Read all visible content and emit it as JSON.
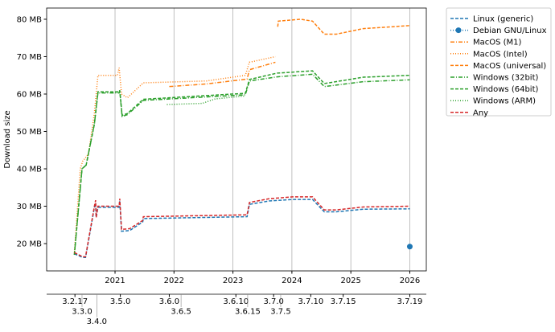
{
  "chart_data": {
    "type": "line",
    "ylabel": "Download size",
    "ylim": [
      12.7,
      83
    ],
    "xlim": [
      2019.84,
      2026.28
    ],
    "yticks": [
      {
        "v": 20,
        "label": "20 MB"
      },
      {
        "v": 30,
        "label": "30 MB"
      },
      {
        "v": 40,
        "label": "40 MB"
      },
      {
        "v": 50,
        "label": "50 MB"
      },
      {
        "v": 60,
        "label": "60 MB"
      },
      {
        "v": 70,
        "label": "70 MB"
      },
      {
        "v": 80,
        "label": "80 MB"
      }
    ],
    "xticks": [
      {
        "v": 2021,
        "label": "2021"
      },
      {
        "v": 2022,
        "label": "2022"
      },
      {
        "v": 2023,
        "label": "2023"
      },
      {
        "v": 2024,
        "label": "2024"
      },
      {
        "v": 2025,
        "label": "2025"
      },
      {
        "v": 2026,
        "label": "2026"
      }
    ],
    "grid": "vertical",
    "legend": "outside-top-right",
    "version_ticks": [
      {
        "v": 2020.32,
        "label": "3.2.17"
      },
      {
        "v": 2020.44,
        "label": "3.3.0"
      },
      {
        "v": 2020.69,
        "label": "3.4.0"
      },
      {
        "v": 2021.09,
        "label": "3.5.0"
      },
      {
        "v": 2021.92,
        "label": "3.6.0"
      },
      {
        "v": 2022.12,
        "label": "3.6.5"
      },
      {
        "v": 2023.05,
        "label": "3.6.10"
      },
      {
        "v": 2023.25,
        "label": "3.6.15"
      },
      {
        "v": 2023.69,
        "label": "3.7.0"
      },
      {
        "v": 2023.81,
        "label": "3.7.5"
      },
      {
        "v": 2024.32,
        "label": "3.7.10"
      },
      {
        "v": 2024.87,
        "label": "3.7.15"
      },
      {
        "v": 2026.0,
        "label": "3.7.19"
      }
    ],
    "series": [
      {
        "name": "Linux (generic)",
        "color": "#1f77b4",
        "style": "dashed",
        "points": [
          [
            2020.31,
            17.3
          ],
          [
            2020.45,
            16.3
          ],
          [
            2020.5,
            16.3
          ],
          [
            2020.65,
            29.7
          ],
          [
            2020.67,
            30.8
          ],
          [
            2020.68,
            27
          ],
          [
            2020.71,
            29.7
          ],
          [
            2021.07,
            29.7
          ],
          [
            2021.08,
            31.5
          ],
          [
            2021.11,
            23.3
          ],
          [
            2021.25,
            23.5
          ],
          [
            2021.47,
            25.8
          ],
          [
            2021.48,
            26.7
          ],
          [
            2023.24,
            27.2
          ],
          [
            2023.28,
            30.5
          ],
          [
            2023.61,
            31.4
          ],
          [
            2024.01,
            31.8
          ],
          [
            2024.35,
            31.8
          ],
          [
            2024.55,
            28.5
          ],
          [
            2024.75,
            28.5
          ],
          [
            2025.21,
            29.2
          ],
          [
            2026,
            29.3
          ]
        ]
      },
      {
        "name": "Debian GNU/Linux",
        "color": "#1f77b4",
        "style": "marker",
        "points": [
          [
            2026,
            19.2
          ]
        ]
      },
      {
        "name": "MacOS (M1)",
        "color": "#ff7f0e",
        "style": "dashdot",
        "points": [
          [
            2021.92,
            62
          ],
          [
            2022.55,
            62.7
          ],
          [
            2023.24,
            64
          ],
          [
            2023.28,
            66.5
          ],
          [
            2023.72,
            68.5
          ]
        ]
      },
      {
        "name": "MacOS (Intel)",
        "color": "#ff7f0e",
        "style": "dotted",
        "points": [
          [
            2020.31,
            17.6
          ],
          [
            2020.41,
            40
          ],
          [
            2020.45,
            42
          ],
          [
            2020.55,
            44
          ],
          [
            2020.65,
            55
          ],
          [
            2020.71,
            65
          ],
          [
            2021.04,
            65
          ],
          [
            2021.07,
            67
          ],
          [
            2021.11,
            60
          ],
          [
            2021.21,
            59
          ],
          [
            2021.48,
            63
          ],
          [
            2022.55,
            63.5
          ],
          [
            2023.21,
            65
          ],
          [
            2023.28,
            68.5
          ],
          [
            2023.72,
            70
          ]
        ]
      },
      {
        "name": "MacOS (universal)",
        "color": "#ff7f0e",
        "style": "dashed",
        "points": [
          [
            2023.76,
            78
          ],
          [
            2023.77,
            79.5
          ],
          [
            2024.15,
            80
          ],
          [
            2024.35,
            79.5
          ],
          [
            2024.55,
            76
          ],
          [
            2024.75,
            76
          ],
          [
            2025.21,
            77.5
          ],
          [
            2026,
            78.3
          ]
        ]
      },
      {
        "name": "Windows (32bit)",
        "color": "#2ca02c",
        "style": "dashdot",
        "points": [
          [
            2020.31,
            17
          ],
          [
            2020.44,
            40
          ],
          [
            2020.51,
            41
          ],
          [
            2020.65,
            52
          ],
          [
            2020.71,
            60.3
          ],
          [
            2021.07,
            60.3
          ],
          [
            2021.08,
            61
          ],
          [
            2021.12,
            54
          ],
          [
            2021.21,
            54.5
          ],
          [
            2021.48,
            58.3
          ],
          [
            2023.21,
            59.8
          ],
          [
            2023.28,
            63.5
          ],
          [
            2023.75,
            64.6
          ],
          [
            2024.35,
            65.3
          ],
          [
            2024.55,
            62
          ],
          [
            2025.21,
            63.3
          ],
          [
            2026,
            63.8
          ]
        ]
      },
      {
        "name": "Windows (64bit)",
        "color": "#2ca02c",
        "style": "dashed",
        "points": [
          [
            2020.31,
            17
          ],
          [
            2020.44,
            40
          ],
          [
            2020.51,
            41
          ],
          [
            2020.65,
            52
          ],
          [
            2020.71,
            60.6
          ],
          [
            2021.07,
            60.6
          ],
          [
            2021.08,
            61
          ],
          [
            2021.12,
            54.3
          ],
          [
            2021.21,
            54.8
          ],
          [
            2021.48,
            58.6
          ],
          [
            2023.21,
            60.2
          ],
          [
            2023.28,
            63.9
          ],
          [
            2023.75,
            65.6
          ],
          [
            2024.35,
            66.2
          ],
          [
            2024.55,
            62.8
          ],
          [
            2025.21,
            64.5
          ],
          [
            2026,
            65
          ]
        ]
      },
      {
        "name": "Windows (ARM)",
        "color": "#2ca02c",
        "style": "dotted",
        "points": [
          [
            2021.88,
            57.2
          ],
          [
            2022.48,
            57.5
          ],
          [
            2022.7,
            58.7
          ],
          [
            2023.21,
            59.5
          ]
        ]
      },
      {
        "name": "Any",
        "color": "#d62728",
        "style": "dashed",
        "points": [
          [
            2020.31,
            17.6
          ],
          [
            2020.45,
            16.5
          ],
          [
            2020.5,
            16.5
          ],
          [
            2020.65,
            30
          ],
          [
            2020.67,
            31.6
          ],
          [
            2020.68,
            27
          ],
          [
            2020.71,
            30
          ],
          [
            2021.07,
            30
          ],
          [
            2021.08,
            32
          ],
          [
            2021.11,
            23.8
          ],
          [
            2021.25,
            24
          ],
          [
            2021.47,
            26.2
          ],
          [
            2021.48,
            27.2
          ],
          [
            2023.24,
            27.7
          ],
          [
            2023.28,
            31
          ],
          [
            2023.61,
            32
          ],
          [
            2024.01,
            32.5
          ],
          [
            2024.35,
            32.5
          ],
          [
            2024.55,
            29
          ],
          [
            2024.75,
            29
          ],
          [
            2025.21,
            29.8
          ],
          [
            2026,
            30
          ]
        ]
      }
    ]
  }
}
